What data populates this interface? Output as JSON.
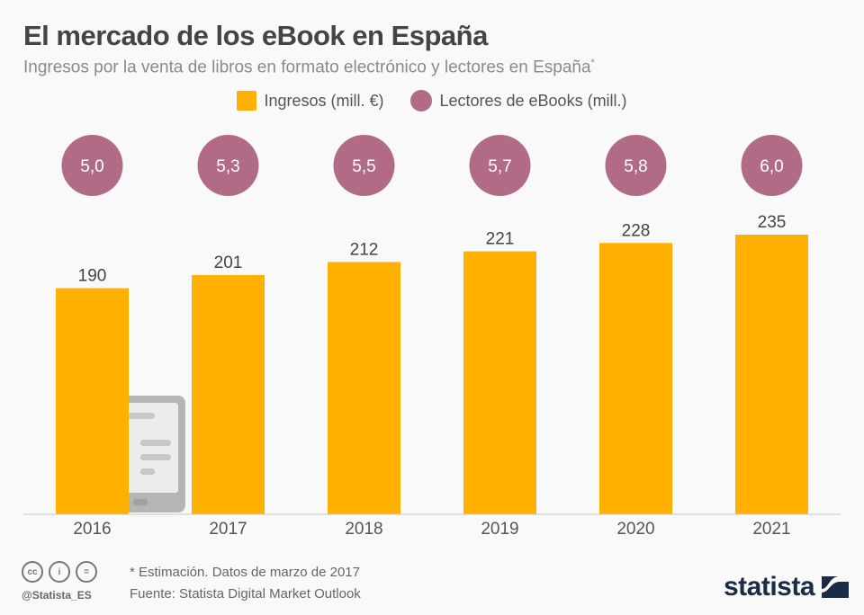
{
  "title": "El mercado de los eBook en España",
  "subtitle": "Ingresos por la venta de libros en formato electrónico y lectores en España",
  "subtitle_mark": "*",
  "legend": [
    {
      "label": "Ingresos (mill. €)",
      "shape": "square",
      "color": "#ffb000"
    },
    {
      "label": "Lectores de eBooks (mill.)",
      "shape": "circle",
      "color": "#b26b87"
    }
  ],
  "chart_data": {
    "type": "bar",
    "title": "El mercado de los eBook en España",
    "categories": [
      "2016",
      "2017",
      "2018",
      "2019",
      "2020",
      "2021"
    ],
    "series": [
      {
        "name": "Ingresos (mill. €)",
        "values": [
          190,
          201,
          212,
          221,
          228,
          235
        ],
        "color": "#ffb000",
        "labels": [
          "190",
          "201",
          "212",
          "221",
          "228",
          "235"
        ]
      },
      {
        "name": "Lectores de eBooks (mill.)",
        "values": [
          5.0,
          5.3,
          5.5,
          5.7,
          5.8,
          6.0
        ],
        "color": "#b26b87",
        "labels": [
          "5,0",
          "5,3",
          "5,5",
          "5,7",
          "5,8",
          "6,0"
        ],
        "display": "circle-badges"
      }
    ],
    "ylim": [
      0,
      235
    ],
    "xlabel": "",
    "ylabel": "",
    "grid": false,
    "legend": "top-center"
  },
  "footer": {
    "note": "* Estimación. Datos de marzo de 2017",
    "source": "Fuente: Statista Digital Market Outlook",
    "handle": "@Statista_ES",
    "license_icons": [
      "cc-icon",
      "by-icon",
      "nd-icon"
    ],
    "license_glyphs": [
      "cc",
      "i",
      "="
    ],
    "brand": "statista"
  }
}
